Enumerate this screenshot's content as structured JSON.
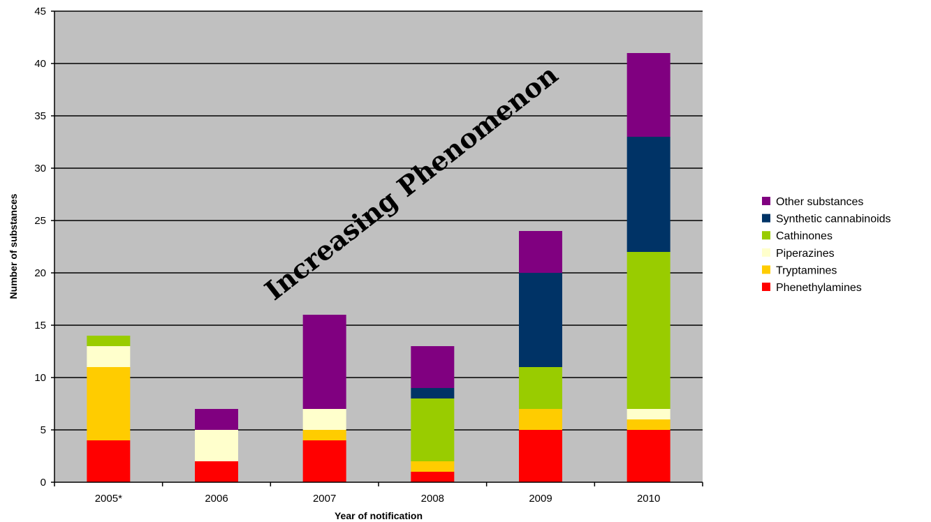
{
  "chart_data": {
    "type": "bar",
    "stacked": true,
    "title": "",
    "xlabel": "Year of notification",
    "ylabel": "Number of substances",
    "ylim": [
      0,
      45
    ],
    "yticks": [
      0,
      5,
      10,
      15,
      20,
      25,
      30,
      35,
      40,
      45
    ],
    "categories": [
      "2005*",
      "2006",
      "2007",
      "2008",
      "2009",
      "2010"
    ],
    "series": [
      {
        "name": "Phenethylamines",
        "color": "#ff0000",
        "values": [
          4,
          2,
          4,
          1,
          5,
          5
        ]
      },
      {
        "name": "Tryptamines",
        "color": "#ffcc00",
        "values": [
          7,
          0,
          1,
          1,
          2,
          1
        ]
      },
      {
        "name": "Piperazines",
        "color": "#ffffcc",
        "values": [
          2,
          3,
          2,
          0,
          0,
          1
        ]
      },
      {
        "name": "Cathinones",
        "color": "#99cc00",
        "values": [
          1,
          0,
          0,
          6,
          4,
          15
        ]
      },
      {
        "name": "Synthetic cannabinoids",
        "color": "#003366",
        "values": [
          0,
          0,
          0,
          1,
          9,
          11
        ]
      },
      {
        "name": "Other substances",
        "color": "#800080",
        "values": [
          0,
          2,
          9,
          4,
          4,
          8
        ]
      }
    ],
    "legend_position": "right",
    "grid": true,
    "plot_background": "#c0c0c0",
    "annotation": "Increasing Phenomenon"
  }
}
